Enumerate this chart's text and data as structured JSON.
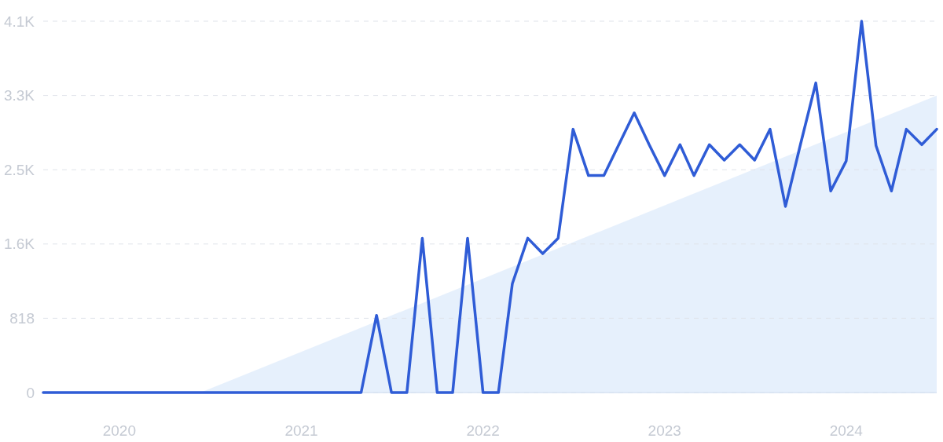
{
  "chart_data": {
    "type": "line",
    "x": [
      "2019-08",
      "2019-09",
      "2019-10",
      "2019-11",
      "2019-12",
      "2020-01",
      "2020-02",
      "2020-03",
      "2020-04",
      "2020-05",
      "2020-06",
      "2020-07",
      "2020-08",
      "2020-09",
      "2020-10",
      "2020-11",
      "2020-12",
      "2021-01",
      "2021-02",
      "2021-03",
      "2021-04",
      "2021-05",
      "2021-06",
      "2021-07",
      "2021-08",
      "2021-09",
      "2021-10",
      "2021-11",
      "2021-12",
      "2022-01",
      "2022-02",
      "2022-03",
      "2022-04",
      "2022-05",
      "2022-06",
      "2022-07",
      "2022-08",
      "2022-09",
      "2022-10",
      "2022-11",
      "2022-12",
      "2023-01",
      "2023-02",
      "2023-03",
      "2023-04",
      "2023-05",
      "2023-06",
      "2023-07",
      "2023-08",
      "2023-09",
      "2023-10",
      "2023-11",
      "2023-12",
      "2024-01",
      "2024-02",
      "2024-03",
      "2024-04",
      "2024-05",
      "2024-06",
      "2024-07"
    ],
    "series": [
      {
        "type": "area",
        "color": "#e2edfc",
        "x": [
          "2020-06-12",
          "2024-07"
        ],
        "values": [
          0,
          3270
        ]
      },
      {
        "color": "#2f5cd6",
        "values": [
          0,
          0,
          0,
          0,
          0,
          0,
          0,
          0,
          0,
          0,
          0,
          0,
          0,
          0,
          0,
          0,
          0,
          0,
          0,
          0,
          0,
          0,
          850,
          0,
          0,
          1700,
          0,
          0,
          1700,
          0,
          0,
          1200,
          1700,
          1530,
          1700,
          2900,
          2390,
          2390,
          2730,
          3080,
          2730,
          2390,
          2730,
          2390,
          2730,
          2560,
          2730,
          2560,
          2900,
          2050,
          2730,
          3410,
          2220,
          2550,
          4090,
          2720,
          2220,
          2900,
          2730,
          2900
        ]
      }
    ],
    "xlim": [
      "2019-08",
      "2024-07"
    ],
    "xticks": [
      "2020",
      "2021",
      "2022",
      "2023",
      "2024"
    ],
    "ylim": [
      0,
      4090
    ],
    "yticks": [
      0,
      818,
      {
        "value": 1636,
        "label": "1.6K"
      },
      {
        "value": 2454,
        "label": "2.5K"
      },
      {
        "value": 3272,
        "label": "3.3K"
      },
      {
        "value": 4090,
        "label": "4.1K"
      }
    ],
    "grid": "y"
  }
}
